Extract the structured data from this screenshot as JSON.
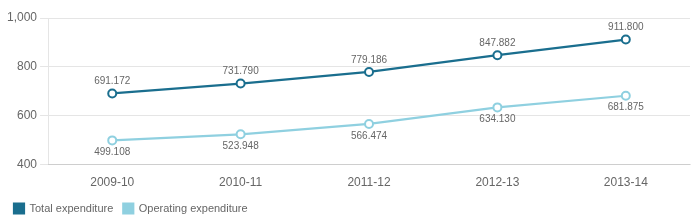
{
  "chart_data": {
    "type": "line",
    "categories": [
      "2009-10",
      "2010-11",
      "2011-12",
      "2012-13",
      "2013-14"
    ],
    "series": [
      {
        "name": "Total expenditure",
        "color": "#1a6e8e",
        "marker": "circle",
        "values": [
          691.172,
          731.79,
          779.186,
          847.882,
          911.8
        ],
        "value_labels": [
          "691.172",
          "731.790",
          "779.186",
          "847.882",
          "911.800"
        ]
      },
      {
        "name": "Operating expenditure",
        "color": "#8fd0e0",
        "marker": "circle",
        "values": [
          499.108,
          523.948,
          566.474,
          634.13,
          681.875
        ],
        "value_labels": [
          "499.108",
          "523.948",
          "566.474",
          "634.130",
          "681.875"
        ]
      }
    ],
    "ylim": [
      400,
      1000
    ],
    "yticks": [
      400,
      600,
      800,
      {
        "value": 1000,
        "label": "1,000"
      }
    ],
    "grid": true,
    "legend": "bottom",
    "data_labels": true
  }
}
